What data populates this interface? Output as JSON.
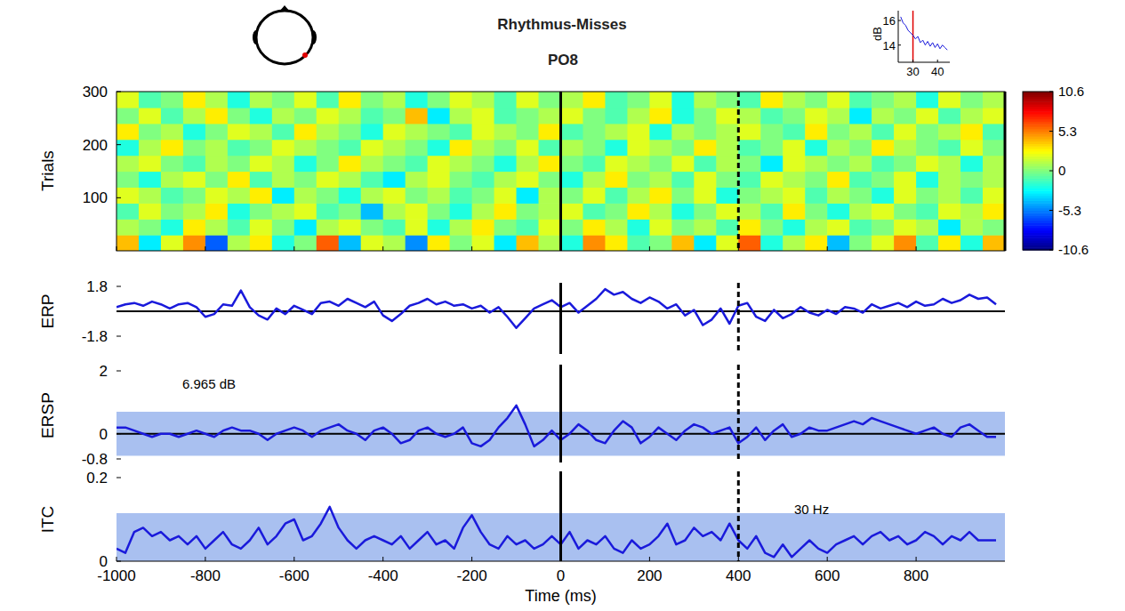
{
  "chart_data": [
    {
      "type": "heatmap",
      "title": "Rhythmus-Misses",
      "subtitle": "PO8",
      "y_label": "Trials",
      "xlim": [
        -1000,
        1000
      ],
      "ylim": [
        0,
        300
      ],
      "yticks": [
        100,
        200,
        300
      ],
      "xticks": [
        -1000,
        -800,
        -600,
        -400,
        -200,
        0,
        200,
        400,
        600,
        800
      ],
      "tick_labels": "y",
      "event_times": [
        0,
        400
      ],
      "colorbar": {
        "range": [
          -10.6,
          10.6
        ],
        "ticks": [
          10.6,
          5.3,
          0,
          -5.3,
          -10.6
        ]
      },
      "cells": [
        [
          4,
          -3,
          2,
          5,
          -6,
          1,
          3,
          -2,
          0,
          6,
          -4,
          2,
          1,
          -5,
          3,
          0,
          2,
          -3,
          4,
          1,
          -2,
          5,
          3,
          -1,
          0,
          4,
          -3,
          2,
          6,
          -2,
          1,
          3,
          -4,
          0,
          2,
          5,
          -1,
          3,
          -2,
          4
        ],
        [
          1,
          0,
          -2,
          3,
          1,
          -1,
          2,
          0,
          -3,
          1,
          2,
          0,
          -1,
          2,
          -2,
          1,
          3,
          0,
          -1,
          2,
          0,
          3,
          1,
          -2,
          2,
          0,
          1,
          -1,
          3,
          0,
          -2,
          1,
          2,
          -1,
          0,
          2,
          1,
          -3,
          1,
          0
        ],
        [
          -1,
          2,
          0,
          1,
          3,
          -2,
          0,
          1,
          2,
          -1,
          0,
          -4,
          1,
          2,
          0,
          -2,
          1,
          3,
          0,
          1,
          2,
          -1,
          0,
          3,
          1,
          -2,
          0,
          2,
          1,
          -1,
          3,
          0,
          -2,
          1,
          2,
          0,
          -1,
          2,
          1,
          3
        ],
        [
          2,
          1,
          -1,
          0,
          2,
          1,
          3,
          -3,
          1,
          0,
          -2,
          1,
          2,
          0,
          1,
          -1,
          0,
          2,
          -3,
          1,
          0,
          2,
          -1,
          1,
          3,
          0,
          2,
          -2,
          0,
          1,
          2,
          -1,
          1,
          0,
          -2,
          2,
          0,
          1,
          -1,
          2
        ],
        [
          0,
          -2,
          1,
          2,
          0,
          3,
          -1,
          1,
          0,
          2,
          1,
          -1,
          -3,
          1,
          2,
          0,
          -1,
          1,
          2,
          0,
          -2,
          1,
          3,
          0,
          1,
          -1,
          2,
          0,
          -1,
          2,
          1,
          0,
          3,
          -1,
          0,
          2,
          -2,
          1,
          0,
          1
        ],
        [
          1,
          2,
          0,
          -1,
          1,
          0,
          2,
          1,
          -2,
          0,
          3,
          1,
          0,
          -1,
          2,
          1,
          0,
          -2,
          1,
          3,
          0,
          -1,
          2,
          1,
          0,
          2,
          -1,
          1,
          0,
          -3,
          2,
          1,
          0,
          1,
          -1,
          0,
          2,
          1,
          -2,
          1
        ],
        [
          -2,
          1,
          3,
          0,
          1,
          -1,
          0,
          2,
          1,
          0,
          -1,
          2,
          1,
          0,
          -2,
          3,
          1,
          0,
          2,
          -1,
          1,
          0,
          -2,
          2,
          1,
          0,
          3,
          1,
          -1,
          0,
          2,
          -2,
          1,
          0,
          3,
          1,
          0,
          -1,
          2,
          0
        ],
        [
          3,
          0,
          1,
          -2,
          0,
          2,
          1,
          -1,
          3,
          1,
          0,
          -2,
          2,
          1,
          0,
          -1,
          2,
          1,
          0,
          3,
          -1,
          0,
          1,
          2,
          -2,
          1,
          0,
          1,
          2,
          0,
          -1,
          3,
          0,
          1,
          -1,
          2,
          0,
          1,
          3,
          -1
        ],
        [
          0,
          2,
          -1,
          1,
          3,
          0,
          -2,
          1,
          0,
          2,
          1,
          -1,
          0,
          4,
          -3,
          1,
          2,
          -1,
          0,
          1,
          2,
          0,
          -1,
          1,
          3,
          -2,
          0,
          2,
          1,
          -1,
          0,
          2,
          1,
          -3,
          1,
          0,
          2,
          -1,
          1,
          2
        ],
        [
          2,
          -1,
          0,
          3,
          1,
          -2,
          1,
          0,
          2,
          -1,
          3,
          0,
          1,
          -2,
          0,
          2,
          1,
          -1,
          2,
          0,
          1,
          3,
          -1,
          0,
          2,
          -2,
          1,
          0,
          -1,
          3,
          1,
          0,
          2,
          -1,
          0,
          1,
          -2,
          2,
          0,
          1
        ]
      ]
    },
    {
      "type": "line",
      "y_label": "ERP",
      "xlim": [
        -1000,
        1000
      ],
      "ylim": [
        -1.8,
        1.8
      ],
      "yticks": [
        -1.8,
        1.8
      ],
      "tick_labels": "y",
      "color": "#1a1adb",
      "baseline": 0,
      "event_times": [
        0,
        400
      ],
      "x": [
        -1000,
        -980,
        -960,
        -940,
        -920,
        -900,
        -880,
        -860,
        -840,
        -820,
        -800,
        -780,
        -760,
        -740,
        -720,
        -700,
        -680,
        -660,
        -640,
        -620,
        -600,
        -580,
        -560,
        -540,
        -520,
        -500,
        -480,
        -460,
        -440,
        -420,
        -400,
        -380,
        -360,
        -340,
        -320,
        -300,
        -280,
        -260,
        -240,
        -220,
        -200,
        -180,
        -160,
        -140,
        -120,
        -100,
        -80,
        -60,
        -40,
        -20,
        0,
        20,
        40,
        60,
        80,
        100,
        120,
        140,
        160,
        180,
        200,
        220,
        240,
        260,
        280,
        300,
        320,
        340,
        360,
        380,
        400,
        420,
        440,
        460,
        480,
        500,
        520,
        540,
        560,
        580,
        600,
        620,
        640,
        660,
        680,
        700,
        720,
        740,
        760,
        780,
        800,
        820,
        840,
        860,
        880,
        900,
        920,
        940,
        960,
        980
      ],
      "values": [
        0.3,
        0.5,
        0.6,
        0.4,
        0.7,
        0.5,
        0.2,
        0.5,
        0.6,
        0.3,
        -0.4,
        -0.2,
        0.5,
        0.4,
        1.5,
        0.3,
        -0.3,
        -0.6,
        0.2,
        -0.2,
        0.4,
        0.1,
        -0.2,
        0.6,
        0.7,
        0.4,
        0.9,
        0.6,
        0.3,
        0.7,
        -0.3,
        -0.7,
        -0.2,
        0.4,
        0.6,
        0.9,
        0.5,
        0.7,
        0.4,
        0.5,
        0.2,
        0.4,
        -0.1,
        0.3,
        -0.4,
        -1.2,
        -0.5,
        0.2,
        0.5,
        0.8,
        0.3,
        0.6,
        -0.1,
        0.4,
        0.9,
        1.6,
        1.2,
        1.4,
        0.9,
        0.6,
        1.0,
        0.7,
        0.2,
        0.5,
        -0.3,
        0.1,
        -1.0,
        -0.6,
        0.2,
        -0.9,
        0.4,
        0.6,
        -0.4,
        -0.7,
        0.1,
        -0.5,
        -0.2,
        0.3,
        -0.1,
        -0.3,
        0.1,
        -0.2,
        0.3,
        0.2,
        -0.1,
        0.5,
        0.2,
        0.4,
        0.6,
        0.3,
        0.7,
        0.4,
        0.5,
        0.9,
        0.6,
        0.8,
        1.2,
        0.9,
        1.0,
        0.5
      ]
    },
    {
      "type": "line",
      "y_label": "ERSP",
      "xlim": [
        -1000,
        1000
      ],
      "ylim": [
        -0.8,
        2
      ],
      "yticks": [
        -0.8,
        0,
        2
      ],
      "tick_labels": "y",
      "color": "#1a1adb",
      "baseline": 0,
      "event_times": [
        0,
        400
      ],
      "band": [
        -0.7,
        0.7
      ],
      "annotation": "6.965 dB",
      "x": [
        -1000,
        -980,
        -960,
        -940,
        -920,
        -900,
        -880,
        -860,
        -840,
        -820,
        -800,
        -780,
        -760,
        -740,
        -720,
        -700,
        -680,
        -660,
        -640,
        -620,
        -600,
        -580,
        -560,
        -540,
        -520,
        -500,
        -480,
        -460,
        -440,
        -420,
        -400,
        -380,
        -360,
        -340,
        -320,
        -300,
        -280,
        -260,
        -240,
        -220,
        -200,
        -180,
        -160,
        -140,
        -120,
        -100,
        -80,
        -60,
        -40,
        -20,
        0,
        20,
        40,
        60,
        80,
        100,
        120,
        140,
        160,
        180,
        200,
        220,
        240,
        260,
        280,
        300,
        320,
        340,
        360,
        380,
        400,
        420,
        440,
        460,
        480,
        500,
        520,
        540,
        560,
        580,
        600,
        620,
        640,
        660,
        680,
        700,
        720,
        740,
        760,
        780,
        800,
        820,
        840,
        860,
        880,
        900,
        920,
        940,
        960,
        980
      ],
      "values": [
        0.2,
        0.2,
        0.1,
        0.0,
        -0.1,
        0.0,
        0.0,
        -0.1,
        0.0,
        0.1,
        0.0,
        -0.1,
        0.1,
        0.2,
        0.1,
        0.1,
        0.0,
        -0.2,
        0.0,
        0.1,
        0.2,
        0.1,
        -0.1,
        0.1,
        0.2,
        0.3,
        0.1,
        0.0,
        -0.2,
        0.1,
        0.2,
        0.0,
        -0.3,
        -0.2,
        0.1,
        0.2,
        0.0,
        -0.1,
        0.0,
        0.2,
        -0.3,
        -0.4,
        -0.2,
        0.2,
        0.5,
        0.9,
        0.3,
        -0.4,
        -0.2,
        0.1,
        -0.2,
        0.0,
        0.3,
        0.1,
        -0.2,
        -0.3,
        0.1,
        0.4,
        0.2,
        -0.3,
        -0.1,
        0.2,
        0.0,
        -0.2,
        0.1,
        0.3,
        0.2,
        0.0,
        0.1,
        0.2,
        -0.3,
        -0.1,
        0.2,
        -0.2,
        0.1,
        0.3,
        -0.1,
        0.0,
        0.2,
        0.1,
        0.1,
        0.2,
        0.3,
        0.4,
        0.3,
        0.5,
        0.4,
        0.3,
        0.2,
        0.1,
        0.0,
        0.1,
        0.2,
        0.0,
        -0.1,
        0.2,
        0.3,
        0.1,
        -0.1,
        -0.1
      ]
    },
    {
      "type": "line",
      "y_label": "ITC",
      "x_label": "Time (ms)",
      "xlim": [
        -1000,
        1000
      ],
      "ylim": [
        0,
        0.2
      ],
      "yticks": [
        0,
        0.2
      ],
      "xticks": [
        -1000,
        -800,
        -600,
        -400,
        -200,
        0,
        200,
        400,
        600,
        800
      ],
      "tick_labels": true,
      "color": "#1a1adb",
      "event_times": [
        0,
        400
      ],
      "band": [
        0,
        0.115
      ],
      "annotation": "30 Hz",
      "x": [
        -1000,
        -980,
        -960,
        -940,
        -920,
        -900,
        -880,
        -860,
        -840,
        -820,
        -800,
        -780,
        -760,
        -740,
        -720,
        -700,
        -680,
        -660,
        -640,
        -620,
        -600,
        -580,
        -560,
        -540,
        -520,
        -500,
        -480,
        -460,
        -440,
        -420,
        -400,
        -380,
        -360,
        -340,
        -320,
        -300,
        -280,
        -260,
        -240,
        -220,
        -200,
        -180,
        -160,
        -140,
        -120,
        -100,
        -80,
        -60,
        -40,
        -20,
        0,
        20,
        40,
        60,
        80,
        100,
        120,
        140,
        160,
        180,
        200,
        220,
        240,
        260,
        280,
        300,
        320,
        340,
        360,
        380,
        400,
        420,
        440,
        460,
        480,
        500,
        520,
        540,
        560,
        580,
        600,
        620,
        640,
        660,
        680,
        700,
        720,
        740,
        760,
        780,
        800,
        820,
        840,
        860,
        880,
        900,
        920,
        940,
        960,
        980
      ],
      "values": [
        0.03,
        0.02,
        0.07,
        0.08,
        0.06,
        0.07,
        0.05,
        0.06,
        0.04,
        0.06,
        0.03,
        0.05,
        0.07,
        0.04,
        0.03,
        0.05,
        0.08,
        0.04,
        0.06,
        0.09,
        0.1,
        0.05,
        0.06,
        0.09,
        0.13,
        0.08,
        0.05,
        0.03,
        0.05,
        0.06,
        0.05,
        0.04,
        0.06,
        0.03,
        0.05,
        0.07,
        0.04,
        0.05,
        0.03,
        0.08,
        0.11,
        0.07,
        0.04,
        0.03,
        0.06,
        0.04,
        0.05,
        0.03,
        0.04,
        0.06,
        0.04,
        0.07,
        0.03,
        0.05,
        0.04,
        0.06,
        0.03,
        0.02,
        0.05,
        0.03,
        0.04,
        0.06,
        0.09,
        0.04,
        0.05,
        0.08,
        0.06,
        0.07,
        0.05,
        0.09,
        0.05,
        0.03,
        0.06,
        0.02,
        0.01,
        0.04,
        0.01,
        0.03,
        0.05,
        0.03,
        0.02,
        0.04,
        0.05,
        0.06,
        0.04,
        0.06,
        0.07,
        0.05,
        0.06,
        0.04,
        0.05,
        0.07,
        0.06,
        0.04,
        0.06,
        0.05,
        0.07,
        0.05,
        0.05,
        0.05
      ]
    },
    {
      "type": "line",
      "y_label": "dB",
      "xlim": [
        24,
        45
      ],
      "ylim": [
        12.6,
        16.8
      ],
      "xticks": [
        30,
        40
      ],
      "yticks": [
        14,
        16
      ],
      "tick_labels": true,
      "color": "#1a1adb",
      "highlight_x": 30,
      "x": [
        25,
        26,
        27,
        28,
        29,
        30,
        31,
        32,
        33,
        34,
        35,
        36,
        37,
        38,
        39,
        40,
        41,
        42,
        43,
        44
      ],
      "values": [
        16.3,
        15.8,
        15.6,
        15.2,
        15.0,
        14.8,
        14.5,
        14.7,
        14.2,
        14.4,
        14.0,
        14.3,
        13.9,
        14.2,
        13.8,
        14.1,
        13.7,
        14.0,
        13.8,
        13.6
      ]
    }
  ]
}
